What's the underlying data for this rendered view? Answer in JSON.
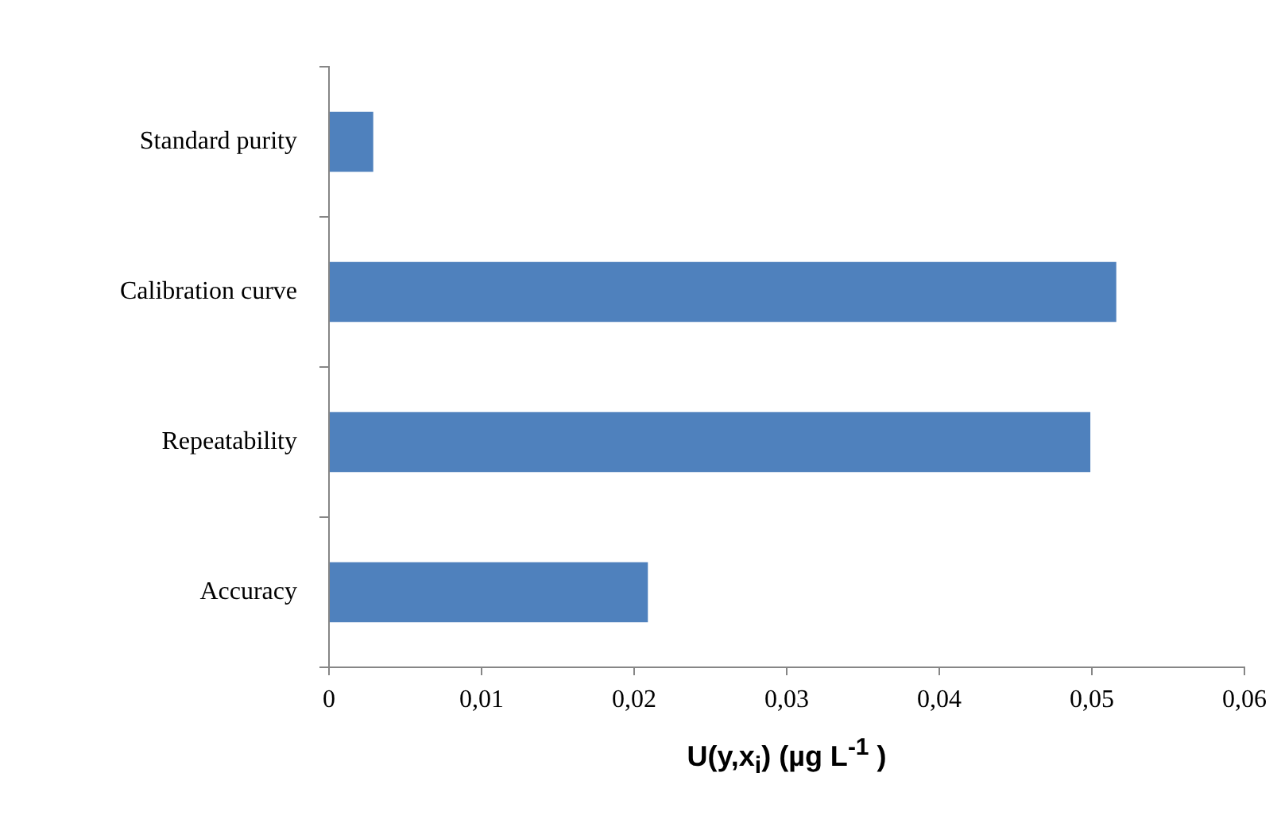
{
  "chart_data": {
    "type": "bar",
    "orientation": "horizontal",
    "xlabel": "U(y,x$_{i}$) (µg L$^{-1}$ )",
    "categories": [
      "Standard purity",
      "Calibration curve",
      "Repeatability",
      "Accuracy"
    ],
    "values": [
      0.0029,
      0.0516,
      0.0499,
      0.0209
    ],
    "color": "#4f81bd",
    "xlim": [
      0,
      0.06
    ],
    "xticks": [
      0,
      {
        "value": 0.01,
        "label": "0,01"
      },
      {
        "value": 0.02,
        "label": "0,02"
      },
      {
        "value": 0.03,
        "label": "0,03"
      },
      {
        "value": 0.04,
        "label": "0,04"
      },
      {
        "value": 0.05,
        "label": "0,05"
      },
      {
        "value": 0.06,
        "label": "0,06"
      }
    ],
    "grid": false,
    "legend": false
  }
}
